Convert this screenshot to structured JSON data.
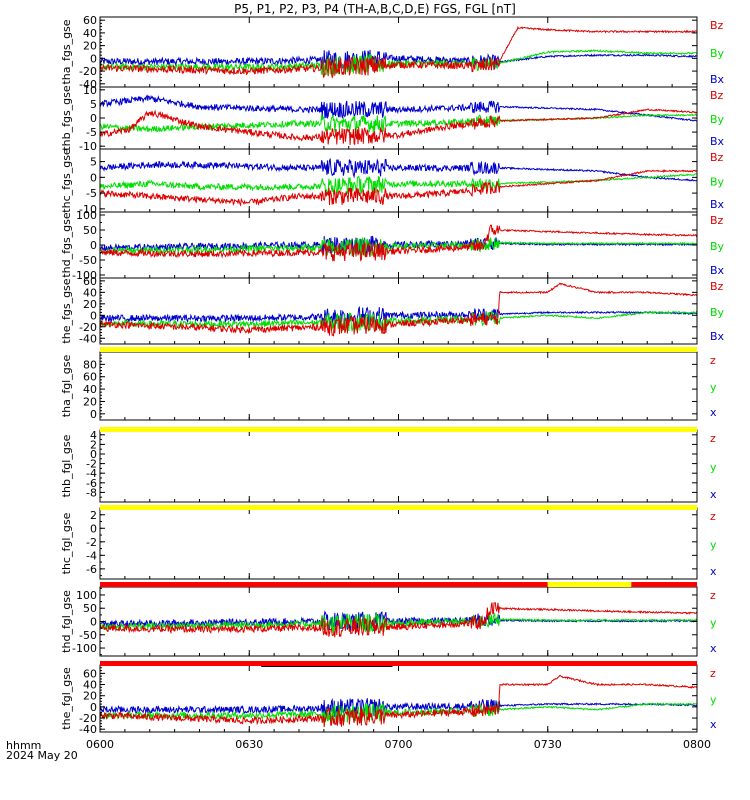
{
  "title": "P5, P1, P2, P3, P4 (TH-A,B,C,D,E) FGS, FGL [nT]",
  "footer": {
    "time_format": "hhmm",
    "date": "2024 May 20"
  },
  "x_ticks": [
    "0600",
    "0630",
    "0700",
    "0730",
    "0800"
  ],
  "colors": {
    "x": "#0000cc",
    "y": "#00dd00",
    "z": "#dd0000",
    "bar_yellow": "#ffff00",
    "bar_red": "#ff0000"
  },
  "chart_data": [
    {
      "type": "line",
      "ylabel": "tha_fgs_gse",
      "ylim": [
        -45,
        65
      ],
      "yticks": [
        "60",
        "40",
        "20",
        "0",
        "-20",
        "-40"
      ],
      "ytick_values": [
        60,
        40,
        20,
        0,
        -20,
        -40
      ],
      "legend": [
        "Bz",
        "By",
        "Bx"
      ],
      "series": [
        {
          "comp": "x",
          "x": [
            0,
            0.25,
            0.5,
            0.667,
            0.75,
            0.83,
            0.92,
            1.0
          ],
          "y": [
            -5,
            -5,
            0,
            -6,
            3,
            5,
            5,
            3
          ]
        },
        {
          "comp": "y",
          "x": [
            0,
            0.25,
            0.5,
            0.667,
            0.75,
            0.83,
            0.92,
            1.0
          ],
          "y": [
            -13,
            -14,
            -8,
            -8,
            10,
            12,
            8,
            8
          ]
        },
        {
          "comp": "z",
          "x": [
            0,
            0.25,
            0.5,
            0.64,
            0.667,
            0.7,
            0.75,
            0.83,
            0.92,
            1.0
          ],
          "y": [
            -15,
            -20,
            -10,
            -12,
            -8,
            48,
            45,
            42,
            42,
            42
          ]
        }
      ]
    },
    {
      "type": "line",
      "ylabel": "thb_fgs_gse",
      "ylim": [
        -11,
        11
      ],
      "yticks": [
        "10",
        "5",
        "0",
        "-5",
        "-10"
      ],
      "ytick_values": [
        10,
        5,
        0,
        -5,
        -10
      ],
      "legend": [
        "Bz",
        "By",
        "Bx"
      ],
      "series": [
        {
          "comp": "x",
          "x": [
            0,
            0.083,
            0.167,
            0.333,
            0.5,
            0.667,
            0.833,
            0.917,
            1.0
          ],
          "y": [
            5,
            7,
            4,
            3,
            3,
            4,
            3,
            1,
            -1
          ]
        },
        {
          "comp": "y",
          "x": [
            0,
            0.083,
            0.167,
            0.333,
            0.5,
            0.667,
            0.833,
            0.917,
            1.0
          ],
          "y": [
            -3,
            -4,
            -3,
            -2,
            -2,
            -1,
            0,
            1,
            1
          ]
        },
        {
          "comp": "z",
          "x": [
            0,
            0.05,
            0.083,
            0.167,
            0.25,
            0.333,
            0.5,
            0.583,
            0.667,
            0.833,
            0.917,
            1.0
          ],
          "y": [
            -6,
            -4,
            2,
            -3,
            -5,
            -7,
            -6,
            -3,
            -1,
            0,
            3,
            2
          ]
        }
      ]
    },
    {
      "type": "line",
      "ylabel": "thc_fgs_gse",
      "ylim": [
        -11,
        9
      ],
      "yticks": [
        "5",
        "0",
        "-5",
        "-10"
      ],
      "ytick_values": [
        5,
        0,
        -5,
        -10
      ],
      "legend": [
        "Bz",
        "By",
        "Bx"
      ],
      "series": [
        {
          "comp": "x",
          "x": [
            0,
            0.083,
            0.167,
            0.333,
            0.5,
            0.667,
            0.833,
            0.917,
            1.0
          ],
          "y": [
            3,
            4,
            4,
            3,
            3,
            3,
            2,
            0,
            -1
          ]
        },
        {
          "comp": "y",
          "x": [
            0,
            0.083,
            0.167,
            0.333,
            0.5,
            0.667,
            0.833,
            0.917,
            1.0
          ],
          "y": [
            -3,
            -2,
            -3,
            -3,
            -2,
            -2,
            -1,
            0,
            1
          ]
        },
        {
          "comp": "z",
          "x": [
            0,
            0.083,
            0.25,
            0.333,
            0.5,
            0.583,
            0.667,
            0.833,
            0.917,
            1.0
          ],
          "y": [
            -5,
            -6,
            -8,
            -6,
            -6,
            -5,
            -3,
            -1,
            2,
            2
          ]
        }
      ]
    },
    {
      "type": "line",
      "ylabel": "thd_fgs_gse",
      "ylim": [
        -110,
        110
      ],
      "yticks": [
        "100",
        "50",
        "0",
        "-50",
        "-100"
      ],
      "ytick_values": [
        100,
        50,
        0,
        -50,
        -100
      ],
      "legend": [
        "Bz",
        "By",
        "Bx"
      ],
      "series": [
        {
          "comp": "x",
          "x": [
            0,
            0.167,
            0.333,
            0.5,
            0.64,
            0.667,
            0.75,
            0.833,
            0.917,
            1.0
          ],
          "y": [
            -10,
            -5,
            0,
            0,
            5,
            5,
            2,
            2,
            2,
            2
          ]
        },
        {
          "comp": "y",
          "x": [
            0,
            0.167,
            0.333,
            0.5,
            0.64,
            0.667,
            0.75,
            0.833,
            0.917,
            1.0
          ],
          "y": [
            -20,
            -15,
            -10,
            -5,
            0,
            8,
            5,
            5,
            5,
            5
          ]
        },
        {
          "comp": "z",
          "x": [
            0,
            0.167,
            0.333,
            0.5,
            0.64,
            0.655,
            0.75,
            0.833,
            0.917,
            1.0
          ],
          "y": [
            -25,
            -30,
            -25,
            -20,
            -5,
            50,
            45,
            40,
            35,
            32
          ]
        }
      ]
    },
    {
      "type": "line",
      "ylabel": "the_fgs_gse",
      "ylim": [
        -50,
        65
      ],
      "yticks": [
        "60",
        "40",
        "20",
        "0",
        "-20",
        "-40"
      ],
      "ytick_values": [
        60,
        40,
        20,
        0,
        -20,
        -40
      ],
      "legend": [
        "Bz",
        "By",
        "Bx"
      ],
      "series": [
        {
          "comp": "x",
          "x": [
            0,
            0.25,
            0.5,
            0.667,
            0.75,
            0.833,
            0.917,
            1.0
          ],
          "y": [
            -5,
            -5,
            0,
            2,
            5,
            5,
            5,
            3
          ]
        },
        {
          "comp": "y",
          "x": [
            0,
            0.25,
            0.5,
            0.667,
            0.75,
            0.833,
            0.917,
            1.0
          ],
          "y": [
            -15,
            -15,
            -10,
            -5,
            0,
            -5,
            5,
            5
          ]
        },
        {
          "comp": "z",
          "x": [
            0,
            0.25,
            0.5,
            0.667,
            0.67,
            0.75,
            0.77,
            0.833,
            0.917,
            1.0
          ],
          "y": [
            -15,
            -25,
            -15,
            -5,
            40,
            40,
            55,
            40,
            40,
            35
          ]
        }
      ]
    },
    {
      "type": "line",
      "ylabel": "tha_fgl_gse",
      "ylim": [
        -10,
        100
      ],
      "yticks": [
        "80",
        "60",
        "40",
        "20",
        "0"
      ],
      "ytick_values": [
        80,
        60,
        40,
        20,
        0
      ],
      "legend": [
        "z",
        "y",
        "x"
      ],
      "series": []
    },
    {
      "type": "line",
      "ylabel": "thb_fgl_gse",
      "ylim": [
        -10,
        5
      ],
      "yticks": [
        "4",
        "2",
        "0",
        "-2",
        "-4",
        "-6",
        "-8"
      ],
      "ytick_values": [
        4,
        2,
        0,
        -2,
        -4,
        -6,
        -8
      ],
      "legend": [
        "z",
        "y",
        "x"
      ],
      "series": []
    },
    {
      "type": "line",
      "ylabel": "thc_fgl_gse",
      "ylim": [
        -7.5,
        3
      ],
      "yticks": [
        "2",
        "0",
        "-2",
        "-4",
        "-6"
      ],
      "ytick_values": [
        2,
        0,
        -2,
        -4,
        -6
      ],
      "legend": [
        "z",
        "y",
        "x"
      ],
      "series": []
    },
    {
      "type": "line",
      "ylabel": "thd_fgl_gse",
      "ylim": [
        -130,
        130
      ],
      "yticks": [
        "100",
        "50",
        "0",
        "-50",
        "-100"
      ],
      "ytick_values": [
        100,
        50,
        0,
        -50,
        -100
      ],
      "legend": [
        "z",
        "y",
        "x"
      ],
      "series": [
        {
          "comp": "x",
          "x": [
            0,
            0.167,
            0.333,
            0.5,
            0.64,
            0.667,
            0.75,
            0.833,
            0.917,
            1.0
          ],
          "y": [
            -10,
            -5,
            0,
            0,
            5,
            5,
            2,
            2,
            2,
            2
          ]
        },
        {
          "comp": "y",
          "x": [
            0,
            0.167,
            0.333,
            0.5,
            0.64,
            0.667,
            0.75,
            0.833,
            0.917,
            1.0
          ],
          "y": [
            -20,
            -15,
            -10,
            -5,
            0,
            8,
            5,
            5,
            5,
            5
          ]
        },
        {
          "comp": "z",
          "x": [
            0,
            0.167,
            0.333,
            0.5,
            0.64,
            0.655,
            0.75,
            0.833,
            0.917,
            1.0
          ],
          "y": [
            -25,
            -30,
            -25,
            -20,
            -5,
            50,
            45,
            40,
            35,
            32
          ]
        }
      ]
    },
    {
      "type": "line",
      "ylabel": "the_fgl_gse",
      "ylim": [
        -45,
        75
      ],
      "yticks": [
        "60",
        "40",
        "20",
        "0",
        "-20",
        "-40"
      ],
      "ytick_values": [
        60,
        40,
        20,
        0,
        -20,
        -40
      ],
      "legend": [
        "z",
        "y",
        "x"
      ],
      "series": [
        {
          "comp": "x",
          "x": [
            0,
            0.25,
            0.5,
            0.667,
            0.75,
            0.833,
            0.917,
            1.0
          ],
          "y": [
            -5,
            -5,
            0,
            2,
            5,
            5,
            5,
            3
          ]
        },
        {
          "comp": "y",
          "x": [
            0,
            0.25,
            0.5,
            0.667,
            0.75,
            0.833,
            0.917,
            1.0
          ],
          "y": [
            -15,
            -15,
            -10,
            -5,
            0,
            -5,
            5,
            5
          ]
        },
        {
          "comp": "z",
          "x": [
            0,
            0.25,
            0.5,
            0.667,
            0.67,
            0.75,
            0.77,
            0.833,
            0.917,
            1.0
          ],
          "y": [
            -15,
            -25,
            -15,
            -5,
            40,
            40,
            55,
            40,
            40,
            35
          ]
        }
      ]
    }
  ],
  "status_bars": [
    {
      "segments": [
        {
          "from": 0,
          "to": 1,
          "color": "yellow"
        }
      ]
    },
    {
      "segments": [
        {
          "from": 0,
          "to": 1,
          "color": "yellow"
        }
      ]
    },
    {
      "segments": [
        {
          "from": 0,
          "to": 1,
          "color": "yellow"
        }
      ]
    },
    {
      "segments": [
        {
          "from": 0,
          "to": 0.75,
          "color": "red"
        },
        {
          "from": 0.75,
          "to": 0.89,
          "color": "yellow"
        },
        {
          "from": 0.89,
          "to": 1,
          "color": "red"
        }
      ]
    },
    {
      "segments": [
        {
          "from": 0,
          "to": 1,
          "color": "red"
        }
      ]
    }
  ]
}
